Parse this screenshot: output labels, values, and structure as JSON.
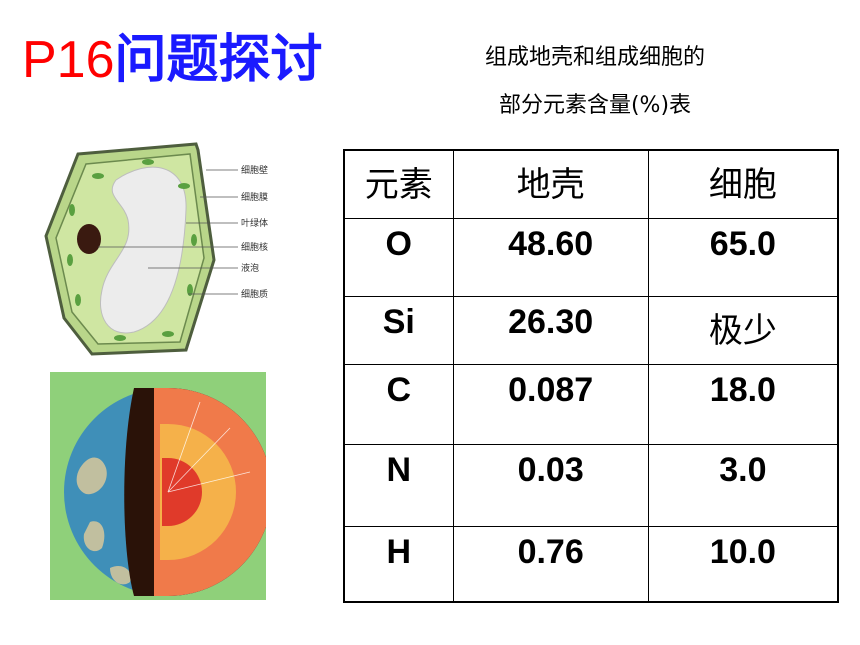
{
  "title": {
    "prefix": "P16",
    "text": "问题探讨"
  },
  "caption": {
    "line1": "组成地壳和组成细胞的",
    "line2": "部分元素含量(%)表"
  },
  "cell_diagram": {
    "labels": [
      "细胞壁",
      "细胞膜",
      "叶绿体",
      "细胞核",
      "液泡",
      "细胞质"
    ]
  },
  "table": {
    "headers": [
      "元素",
      "地壳",
      "细胞"
    ],
    "rows": [
      {
        "element": "O",
        "crust": "48.60",
        "cell": "65.0"
      },
      {
        "element": "Si",
        "crust": "26.30",
        "cell": "极少"
      },
      {
        "element": "C",
        "crust": "0.087",
        "cell": "18.0"
      },
      {
        "element": "N",
        "crust": "0.03",
        "cell": "3.0"
      },
      {
        "element": "H",
        "crust": "0.76",
        "cell": "10.0"
      }
    ]
  }
}
